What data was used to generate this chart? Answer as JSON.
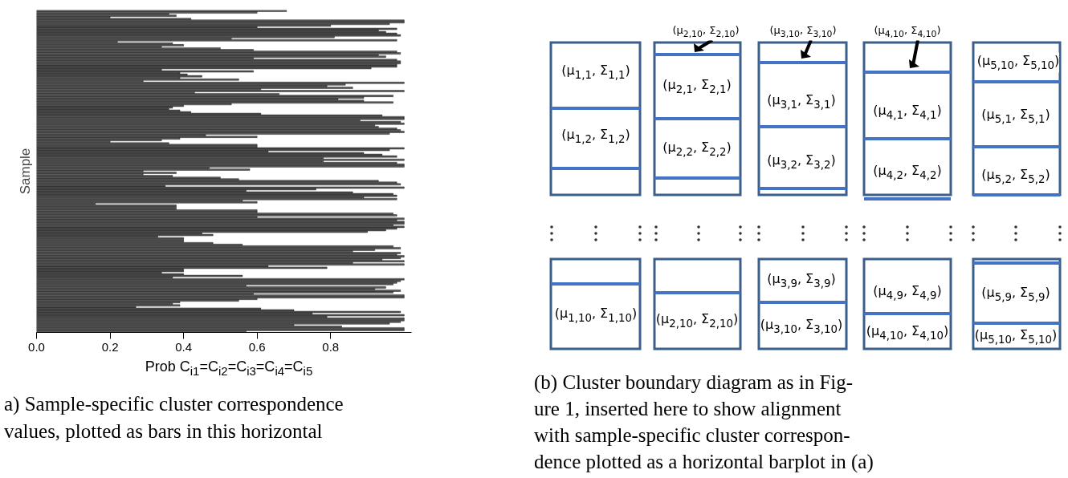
{
  "chart_data": [
    {
      "type": "bar",
      "orientation": "horizontal",
      "ylabel": "Sample",
      "xlabel": "Prob C$_{i1}$=C$_{i2}$=C$_{i3}$=C$_{i4}$=C$_{i5}$",
      "color": "#5a5a5a",
      "xlim": [
        0,
        1.02
      ],
      "xticks": [
        {
          "value": 0,
          "label": "0.0"
        },
        0.2,
        0.4,
        0.6,
        0.8
      ],
      "tick_labels": "x",
      "grid": false,
      "categories": [
        null,
        null,
        null,
        null,
        null,
        null,
        null,
        null,
        null,
        null,
        null,
        null,
        null,
        null,
        null,
        null,
        null,
        null,
        null,
        null,
        null,
        null,
        null,
        null,
        null,
        null,
        null,
        null,
        null,
        null,
        null,
        null,
        null,
        null,
        null,
        null,
        null,
        null,
        null,
        null,
        null,
        null,
        null,
        null,
        null,
        null,
        null,
        null,
        null,
        null,
        null,
        null,
        null,
        null,
        null,
        null,
        null,
        null,
        null,
        null,
        null,
        null,
        null,
        null,
        null,
        null,
        null,
        null,
        null,
        null,
        null,
        null,
        null,
        null,
        null,
        null,
        null,
        null,
        null,
        null,
        null,
        null,
        null,
        null,
        null,
        null,
        null,
        null,
        null,
        null,
        null,
        null,
        null,
        null,
        null,
        null,
        null,
        null,
        null,
        null,
        null,
        null,
        null,
        null,
        null,
        null,
        null,
        null,
        null,
        null,
        null,
        null,
        null,
        null,
        null,
        null,
        null,
        null,
        null,
        null,
        null,
        null,
        null,
        null,
        null,
        null,
        null,
        null,
        null,
        null,
        null,
        null,
        null,
        null,
        null,
        null,
        null,
        null,
        null,
        null,
        null,
        null,
        null,
        null,
        null,
        null,
        null,
        null,
        null,
        null,
        null,
        null,
        null,
        null,
        null,
        null,
        null,
        null,
        null,
        null,
        null,
        null,
        null,
        null,
        null,
        null,
        null,
        null,
        null,
        null,
        null,
        null,
        null,
        null,
        null,
        null,
        null,
        null,
        null,
        null,
        null,
        null,
        null,
        null,
        null,
        null,
        null,
        null,
        null,
        null,
        null,
        null,
        null,
        null,
        null,
        null,
        null
      ],
      "values": [
        0.68,
        0.6,
        0.36,
        0.38,
        0.2,
        0.42,
        1.0,
        1.0,
        0.96,
        0.8,
        0.6,
        0.98,
        0.93,
        0.95,
        0.98,
        0.99,
        0.81,
        0.53,
        0.98,
        0.22,
        0.37,
        0.4,
        0.34,
        0.5,
        0.59,
        0.98,
        0.99,
        0.93,
        0.95,
        0.59,
        0.98,
        0.99,
        0.99,
        0.98,
        0.98,
        0.91,
        0.34,
        0.59,
        0.39,
        0.41,
        0.45,
        0.39,
        0.55,
        0.29,
        1.0,
        0.84,
        0.79,
        0.86,
        0.61,
        1.0,
        0.43,
        0.66,
        0.97,
        0.89,
        0.82,
        0.89,
        0.97,
        0.53,
        0.4,
        0.37,
        0.36,
        0.39,
        0.42,
        0.61,
        0.94,
        1.0,
        1.0,
        0.88,
        0.99,
        1.0,
        0.92,
        0.93,
        0.98,
        0.99,
        1.0,
        0.96,
        0.46,
        0.6,
        0.39,
        0.34,
        0.2,
        0.36,
        0.6,
        0.6,
        1.0,
        0.96,
        0.63,
        0.89,
        0.94,
        0.98,
        0.78,
        1.0,
        0.78,
        0.98,
        1.0,
        1.0,
        0.47,
        0.58,
        0.29,
        0.38,
        0.29,
        0.37,
        0.5,
        0.55,
        0.93,
        0.98,
        0.99,
        0.35,
        1.0,
        0.76,
        0.57,
        0.86,
        0.97,
        0.98,
        0.89,
        0.98,
        0.56,
        0.6,
        0.16,
        0.38,
        0.38,
        0.38,
        0.6,
        0.6,
        0.97,
        0.98,
        0.6,
        1.0,
        0.98,
        1.0,
        1.0,
        0.97,
        1.0,
        0.98,
        0.95,
        0.9,
        0.45,
        0.48,
        0.33,
        0.4,
        0.4,
        0.4,
        0.48,
        0.56,
        0.97,
        0.99,
        0.92,
        0.86,
        0.99,
        0.98,
        1.0,
        0.99,
        0.94,
        1.0,
        0.86,
        1.0,
        0.63,
        0.79,
        0.4,
        0.4,
        0.34,
        0.4,
        0.56,
        0.37,
        1.0,
        0.99,
        0.98,
        0.97,
        0.57,
        0.95,
        0.92,
        0.99,
        0.97,
        0.59,
        1.0,
        1.0,
        0.6,
        0.55,
        0.39,
        0.37,
        0.39,
        0.27,
        0.61,
        0.7,
        0.99,
        0.75,
        1.0,
        0.79,
        1.0,
        1.0,
        0.99,
        0.96,
        0.7,
        0.83,
        1.0,
        1.0,
        0.57
      ],
      "annotations": [
        "a) Sample-specific cluster correspondence",
        "values, plotted as bars in this horizontal"
      ]
    },
    {
      "type": "other",
      "annotations": [
        "(μ$_{1,1}$, Σ$_{1,1}$)",
        "(μ$_{1,2}$, Σ$_{1,2}$)",
        "(μ$_{1,10}$, Σ$_{1,10}$)",
        "(μ$_{2,10}$, Σ$_{2,10}$)",
        "(μ$_{2,1}$, Σ$_{2,1}$)",
        "(μ$_{2,2}$, Σ$_{2,2}$)",
        "(μ$_{2,10}$, Σ$_{2,10}$)",
        "(μ$_{3,10}$, Σ$_{3,10}$)",
        "(μ$_{3,1}$, Σ$_{3,1}$)",
        "(μ$_{3,2}$, Σ$_{3,2}$)",
        "(μ$_{3,9}$, Σ$_{3,9}$)",
        "(μ$_{3,10}$, Σ$_{3,10}$)",
        "(μ$_{4,10}$, Σ$_{4,10}$)",
        "(μ$_{4,1}$, Σ$_{4,1}$)",
        "(μ$_{4,2}$, Σ$_{4,2}$)",
        "(μ$_{4,9}$, Σ$_{4,9}$)",
        "(μ$_{4,10}$, Σ$_{4,10}$)",
        "(μ$_{5,10}$, Σ$_{5,10}$)",
        "(μ$_{5,1}$, Σ$_{5,1}$)",
        "(μ$_{5,2}$, Σ$_{5,2}$)",
        "(μ$_{5,9}$, Σ$_{5,9}$)",
        "(μ$_{5,10}$, Σ$_{5,10}$)",
        "(b) Cluster boundary diagram as in Fig-",
        "ure 1, inserted here to show alignment",
        "with sample-specific cluster correspon-",
        "dence plotted as a horizontal barplot in (a)"
      ]
    }
  ]
}
